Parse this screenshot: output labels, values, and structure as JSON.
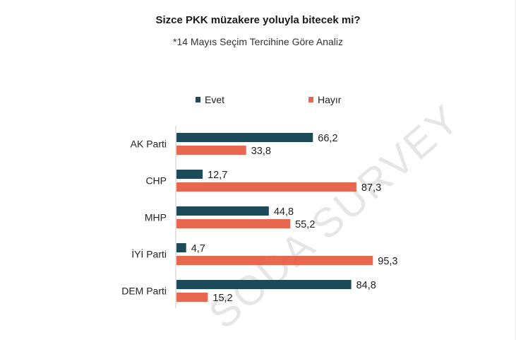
{
  "title": "Sizce PKK müzakere yoluyla bitecek mi?",
  "subtitle": "*14 Mayıs Seçim Tercihine Göre Analiz",
  "watermark": "SODA SURVEY",
  "colors": {
    "evet": "#1d4a58",
    "hayir": "#e8684f",
    "axis": "#c8c8c8"
  },
  "chart_data": {
    "type": "bar",
    "orientation": "horizontal",
    "title": "Sizce PKK müzakere yoluyla bitecek mi?",
    "subtitle": "*14 Mayıs Seçim Tercihine Göre Analiz",
    "categories": [
      "AK Parti",
      "CHP",
      "MHP",
      "İYİ Parti",
      "DEM Parti"
    ],
    "series": [
      {
        "name": "Evet",
        "values": [
          66.2,
          12.7,
          44.8,
          4.7,
          84.8
        ]
      },
      {
        "name": "Hayır",
        "values": [
          33.8,
          87.3,
          55.2,
          95.3,
          15.2
        ]
      }
    ],
    "value_labels": {
      "Evet": [
        "66,2",
        "12,7",
        "44,8",
        "4,7",
        "84,8"
      ],
      "Hayır": [
        "33,8",
        "87,3",
        "55,2",
        "95,3",
        "15,2"
      ]
    },
    "xlim": [
      0,
      100
    ],
    "legend_position": "top",
    "grid": false
  }
}
